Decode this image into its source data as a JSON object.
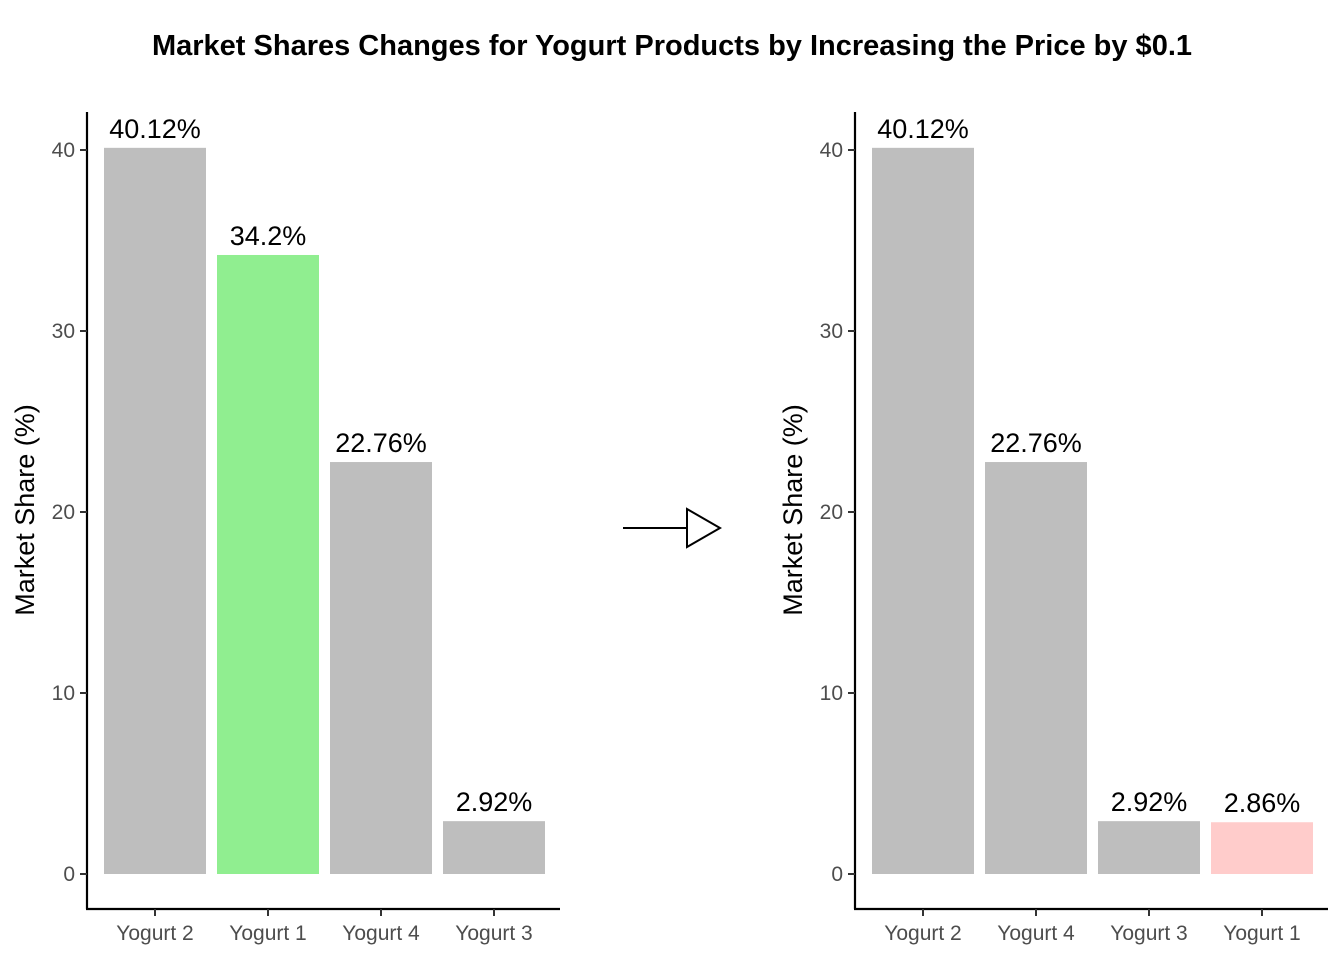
{
  "title": "Market Shares Changes for Yogurt Products by Increasing the Price by $0.1",
  "chart_data": [
    {
      "type": "bar",
      "categories": [
        "Yogurt 2",
        "Yogurt 1",
        "Yogurt 4",
        "Yogurt 3"
      ],
      "values": [
        40.12,
        34.2,
        22.76,
        2.92
      ],
      "data_labels": [
        "40.12%",
        "34.2%",
        "22.76%",
        "2.92%"
      ],
      "colors": [
        "#bebebe",
        "#90ee90",
        "#bebebe",
        "#bebebe"
      ],
      "ylabel": "Market Share (%)",
      "xlabel": "",
      "ylim": [
        0,
        42
      ],
      "yticks": [
        0,
        10,
        20,
        30,
        40
      ],
      "grid": false
    },
    {
      "type": "bar",
      "categories": [
        "Yogurt 2",
        "Yogurt 4",
        "Yogurt 3",
        "Yogurt 1"
      ],
      "values": [
        40.12,
        22.76,
        2.92,
        2.86
      ],
      "data_labels": [
        "40.12%",
        "22.76%",
        "2.92%",
        "2.86%"
      ],
      "colors": [
        "#bebebe",
        "#bebebe",
        "#bebebe",
        "#ffcccb"
      ],
      "ylabel": "Market Share (%)",
      "xlabel": "",
      "ylim": [
        0,
        42
      ],
      "yticks": [
        0,
        10,
        20,
        30,
        40
      ],
      "grid": false
    }
  ],
  "connector": {
    "icon": "right-arrow-icon"
  }
}
